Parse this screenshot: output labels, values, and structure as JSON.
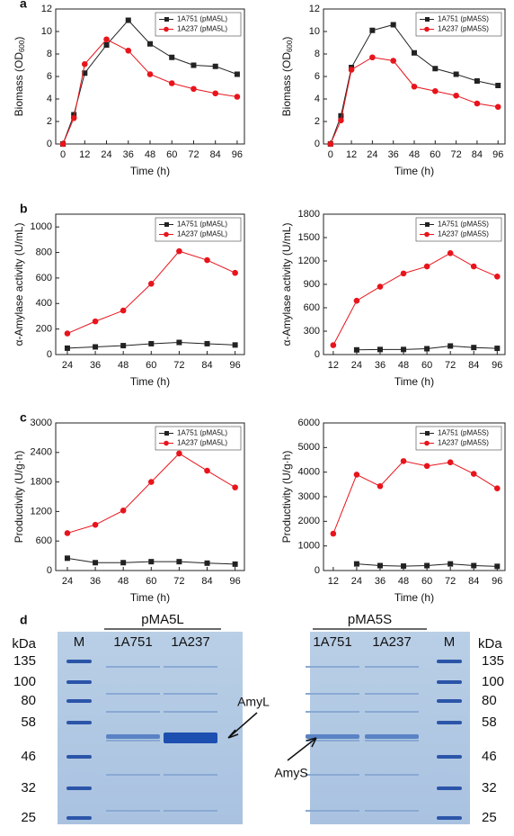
{
  "chart_data": [
    {
      "type": "line",
      "panel_label": "a",
      "y_label": [
        "Biomass (OD",
        "600",
        ")"
      ],
      "x_label": "Time (h)",
      "xlim": [
        -4,
        100
      ],
      "xticks": [
        0,
        12,
        24,
        36,
        48,
        60,
        72,
        84,
        96
      ],
      "ylim": [
        0,
        12
      ],
      "yticks": [
        0,
        2,
        4,
        6,
        8,
        10,
        12
      ],
      "legend": "upper right",
      "series": [
        {
          "name": "1A751 (pMA5L)",
          "color": "#222222",
          "marker": "square",
          "x": [
            0,
            6,
            12,
            24,
            36,
            48,
            60,
            72,
            84,
            96
          ],
          "values": [
            0,
            2.6,
            6.3,
            8.8,
            11.0,
            8.9,
            7.7,
            7.0,
            6.9,
            6.2
          ]
        },
        {
          "name": "1A237 (pMA5L)",
          "color": "#e8141c",
          "marker": "circle",
          "x": [
            0,
            6,
            12,
            24,
            36,
            48,
            60,
            72,
            84,
            96
          ],
          "values": [
            0,
            2.3,
            7.1,
            9.3,
            8.3,
            6.2,
            5.4,
            4.9,
            4.5,
            4.2
          ]
        }
      ]
    },
    {
      "type": "line",
      "y_label": [
        "Biomass (OD",
        "600",
        ")"
      ],
      "x_label": "Time (h)",
      "xlim": [
        -4,
        100
      ],
      "xticks": [
        0,
        12,
        24,
        36,
        48,
        60,
        72,
        84,
        96
      ],
      "ylim": [
        0,
        12
      ],
      "yticks": [
        0,
        2,
        4,
        6,
        8,
        10,
        12
      ],
      "legend": "upper right",
      "series": [
        {
          "name": "1A751 (pMA5S)",
          "color": "#222222",
          "marker": "square",
          "x": [
            0,
            6,
            12,
            24,
            36,
            48,
            60,
            72,
            84,
            96
          ],
          "values": [
            0,
            2.5,
            6.8,
            10.1,
            10.6,
            8.1,
            6.7,
            6.2,
            5.6,
            5.2
          ]
        },
        {
          "name": "1A237 (pMA5S)",
          "color": "#e8141c",
          "marker": "circle",
          "x": [
            0,
            6,
            12,
            24,
            36,
            48,
            60,
            72,
            84,
            96
          ],
          "values": [
            0,
            2.1,
            6.6,
            7.7,
            7.4,
            5.1,
            4.7,
            4.3,
            3.6,
            3.3
          ]
        }
      ]
    },
    {
      "type": "line",
      "panel_label": "b",
      "y_label": [
        "α-Amylase activity (U/mL)"
      ],
      "x_label": "Time (h)",
      "xlim": [
        19,
        100
      ],
      "xticks": [
        24,
        36,
        48,
        60,
        72,
        84,
        96
      ],
      "ylim": [
        0,
        1100
      ],
      "yticks": [
        0,
        200,
        400,
        600,
        800,
        1000
      ],
      "legend": "upper right",
      "series": [
        {
          "name": "1A751 (pMA5L)",
          "color": "#222222",
          "marker": "square",
          "x": [
            24,
            36,
            48,
            60,
            72,
            84,
            96
          ],
          "values": [
            50,
            60,
            70,
            85,
            95,
            85,
            75
          ]
        },
        {
          "name": "1A237 (pMA5L)",
          "color": "#e8141c",
          "marker": "circle",
          "x": [
            24,
            36,
            48,
            60,
            72,
            84,
            96
          ],
          "values": [
            165,
            260,
            345,
            555,
            810,
            740,
            640
          ]
        }
      ]
    },
    {
      "type": "line",
      "y_label": [
        "α-Amylase activity (U/mL)"
      ],
      "x_label": "Time (h)",
      "xlim": [
        7,
        100
      ],
      "xticks": [
        12,
        24,
        36,
        48,
        60,
        72,
        84,
        96
      ],
      "ylim": [
        0,
        1800
      ],
      "yticks": [
        0,
        300,
        600,
        900,
        1200,
        1500,
        1800
      ],
      "legend": "upper right",
      "series": [
        {
          "name": "1A751 (pMA5S)",
          "color": "#222222",
          "marker": "square",
          "x": [
            24,
            36,
            48,
            60,
            72,
            84,
            96
          ],
          "values": [
            60,
            65,
            65,
            75,
            110,
            90,
            80
          ]
        },
        {
          "name": "1A237 (pMA5S)",
          "color": "#e8141c",
          "marker": "circle",
          "x": [
            12,
            24,
            36,
            48,
            60,
            72,
            84,
            96
          ],
          "values": [
            120,
            690,
            870,
            1040,
            1130,
            1300,
            1130,
            1000
          ]
        }
      ]
    },
    {
      "type": "line",
      "panel_label": "c",
      "y_label": [
        "Productivity (U/g·h)"
      ],
      "x_label": "Time (h)",
      "xlim": [
        19,
        100
      ],
      "xticks": [
        24,
        36,
        48,
        60,
        72,
        84,
        96
      ],
      "ylim": [
        0,
        3000
      ],
      "yticks": [
        0,
        600,
        1200,
        1800,
        2400,
        3000
      ],
      "legend": "upper right",
      "series": [
        {
          "name": "1A751 (pMA5L)",
          "color": "#222222",
          "marker": "square",
          "x": [
            24,
            36,
            48,
            60,
            72,
            84,
            96
          ],
          "values": [
            250,
            160,
            160,
            180,
            180,
            150,
            130
          ]
        },
        {
          "name": "1A237 (pMA5L)",
          "color": "#e8141c",
          "marker": "circle",
          "x": [
            24,
            36,
            48,
            60,
            72,
            84,
            96
          ],
          "values": [
            760,
            930,
            1220,
            1800,
            2380,
            2030,
            1690
          ]
        }
      ]
    },
    {
      "type": "line",
      "y_label": [
        "Productivity (U/g·h)"
      ],
      "x_label": "Time (h)",
      "xlim": [
        7,
        100
      ],
      "xticks": [
        12,
        24,
        36,
        48,
        60,
        72,
        84,
        96
      ],
      "ylim": [
        0,
        6000
      ],
      "yticks": [
        0,
        1000,
        2000,
        3000,
        4000,
        5000,
        6000
      ],
      "legend": "upper right",
      "series": [
        {
          "name": "1A751 (pMA5S)",
          "color": "#222222",
          "marker": "square",
          "x": [
            24,
            36,
            48,
            60,
            72,
            84,
            96
          ],
          "values": [
            270,
            200,
            180,
            200,
            270,
            200,
            170
          ]
        },
        {
          "name": "1A237 (pMA5S)",
          "color": "#e8141c",
          "marker": "circle",
          "x": [
            12,
            24,
            36,
            48,
            60,
            72,
            84,
            96
          ],
          "values": [
            1500,
            3900,
            3430,
            4450,
            4250,
            4400,
            3930,
            3340
          ]
        }
      ]
    }
  ],
  "gel": {
    "panel_label": "d",
    "unit": "kDa",
    "markers": [
      135,
      100,
      80,
      58,
      46,
      32,
      25
    ],
    "left": {
      "group": "pMA5L",
      "lanes": [
        "M",
        "1A751",
        "1A237"
      ],
      "annotation": "AmyL"
    },
    "right": {
      "group": "pMA5S",
      "lanes": [
        "1A751",
        "1A237",
        "M"
      ],
      "annotation": "AmyS"
    }
  }
}
